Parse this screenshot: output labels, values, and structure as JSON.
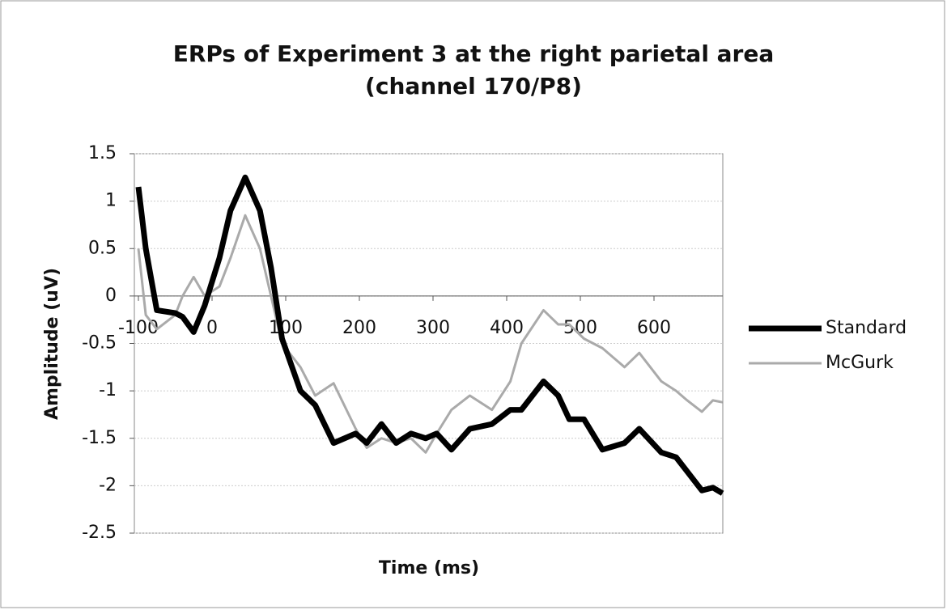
{
  "chart_data": {
    "type": "line",
    "title": "ERPs of Experiment 3 at the right parietal area",
    "subtitle": "(channel 170/P8)",
    "x_label": "Time (ms)",
    "y_label": "Amplitude (uV)",
    "x": [
      -100,
      -90,
      -75,
      -50,
      -40,
      -25,
      -10,
      10,
      25,
      45,
      65,
      80,
      95,
      120,
      140,
      165,
      195,
      210,
      230,
      250,
      270,
      290,
      305,
      325,
      350,
      380,
      405,
      420,
      450,
      470,
      485,
      505,
      530,
      560,
      580,
      610,
      630,
      645,
      665,
      680,
      693
    ],
    "series": [
      {
        "name": "Standard",
        "color": "#000000",
        "values": [
          1.15,
          0.5,
          -0.15,
          -0.18,
          -0.22,
          -0.38,
          -0.1,
          0.4,
          0.9,
          1.25,
          0.9,
          0.3,
          -0.45,
          -1.0,
          -1.15,
          -1.55,
          -1.45,
          -1.55,
          -1.35,
          -1.55,
          -1.45,
          -1.5,
          -1.45,
          -1.62,
          -1.4,
          -1.35,
          -1.2,
          -1.2,
          -0.9,
          -1.05,
          -1.3,
          -1.3,
          -1.62,
          -1.55,
          -1.4,
          -1.65,
          -1.7,
          -1.85,
          -2.05,
          -2.02,
          -2.08
        ]
      },
      {
        "name": "McGurk",
        "color": "#aaaaaa",
        "values": [
          0.5,
          -0.2,
          -0.35,
          -0.2,
          0.0,
          0.2,
          0.0,
          0.1,
          0.4,
          0.85,
          0.5,
          0.0,
          -0.5,
          -0.75,
          -1.05,
          -0.92,
          -1.4,
          -1.6,
          -1.5,
          -1.55,
          -1.5,
          -1.65,
          -1.45,
          -1.2,
          -1.05,
          -1.2,
          -0.9,
          -0.5,
          -0.15,
          -0.3,
          -0.3,
          -0.45,
          -0.55,
          -0.75,
          -0.6,
          -0.9,
          -1.0,
          -1.1,
          -1.22,
          -1.1,
          -1.12
        ]
      }
    ],
    "xlim": [
      -100,
      700
    ],
    "xticks": [
      -100,
      0,
      100,
      200,
      300,
      400,
      500,
      600
    ],
    "ylim": [
      -2.5,
      1.5
    ],
    "yticks": [
      -2.5,
      -2,
      -1.5,
      -1,
      -0.5,
      0,
      0.5,
      1,
      1.5
    ],
    "grid": true,
    "legend": "right"
  }
}
